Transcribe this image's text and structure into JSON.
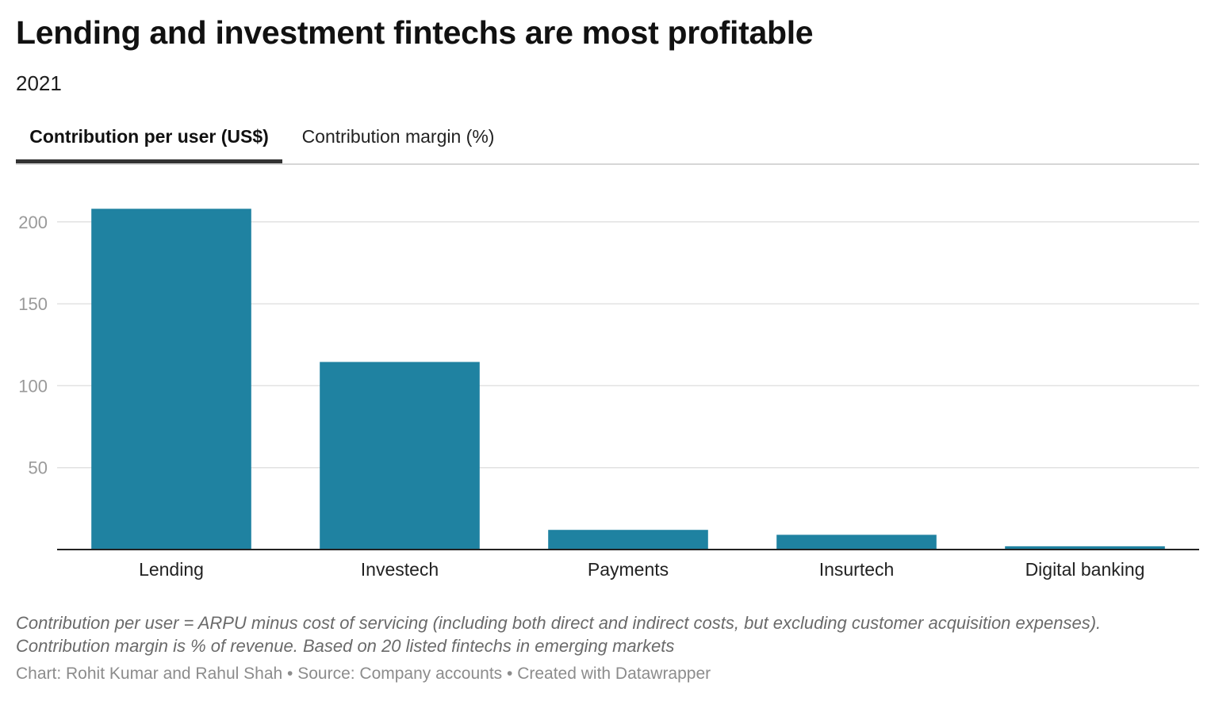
{
  "header": {
    "title": "Lending and investment fintechs are most profitable",
    "subtitle": "2021"
  },
  "tabs": [
    {
      "label": "Contribution per user (US$)",
      "active": true
    },
    {
      "label": "Contribution margin (%)",
      "active": false
    }
  ],
  "colors": {
    "bar": "#1f82a1",
    "gridline": "#e2e2e2",
    "axis": "#222222",
    "tick_label": "#9a9a9a",
    "category_label": "#222222"
  },
  "chart_data": {
    "type": "bar",
    "categories": [
      "Lending",
      "Investech",
      "Payments",
      "Insurtech",
      "Digital banking"
    ],
    "values": [
      208,
      114.5,
      12,
      9,
      2
    ],
    "title": "Lending and investment fintechs are most profitable",
    "xlabel": "",
    "ylabel": "",
    "ylim": [
      0,
      215
    ],
    "yticks": [
      50,
      100,
      150,
      200
    ],
    "grid": true,
    "legend": "none"
  },
  "notes": {
    "line1": "Contribution per user = ARPU minus cost of servicing (including both direct and indirect costs, but excluding customer acquisition expenses).",
    "line2": "Contribution margin is % of revenue. Based on 20 listed fintechs in emerging markets"
  },
  "credit": "Chart: Rohit Kumar and Rahul Shah • Source: Company accounts • Created with Datawrapper"
}
